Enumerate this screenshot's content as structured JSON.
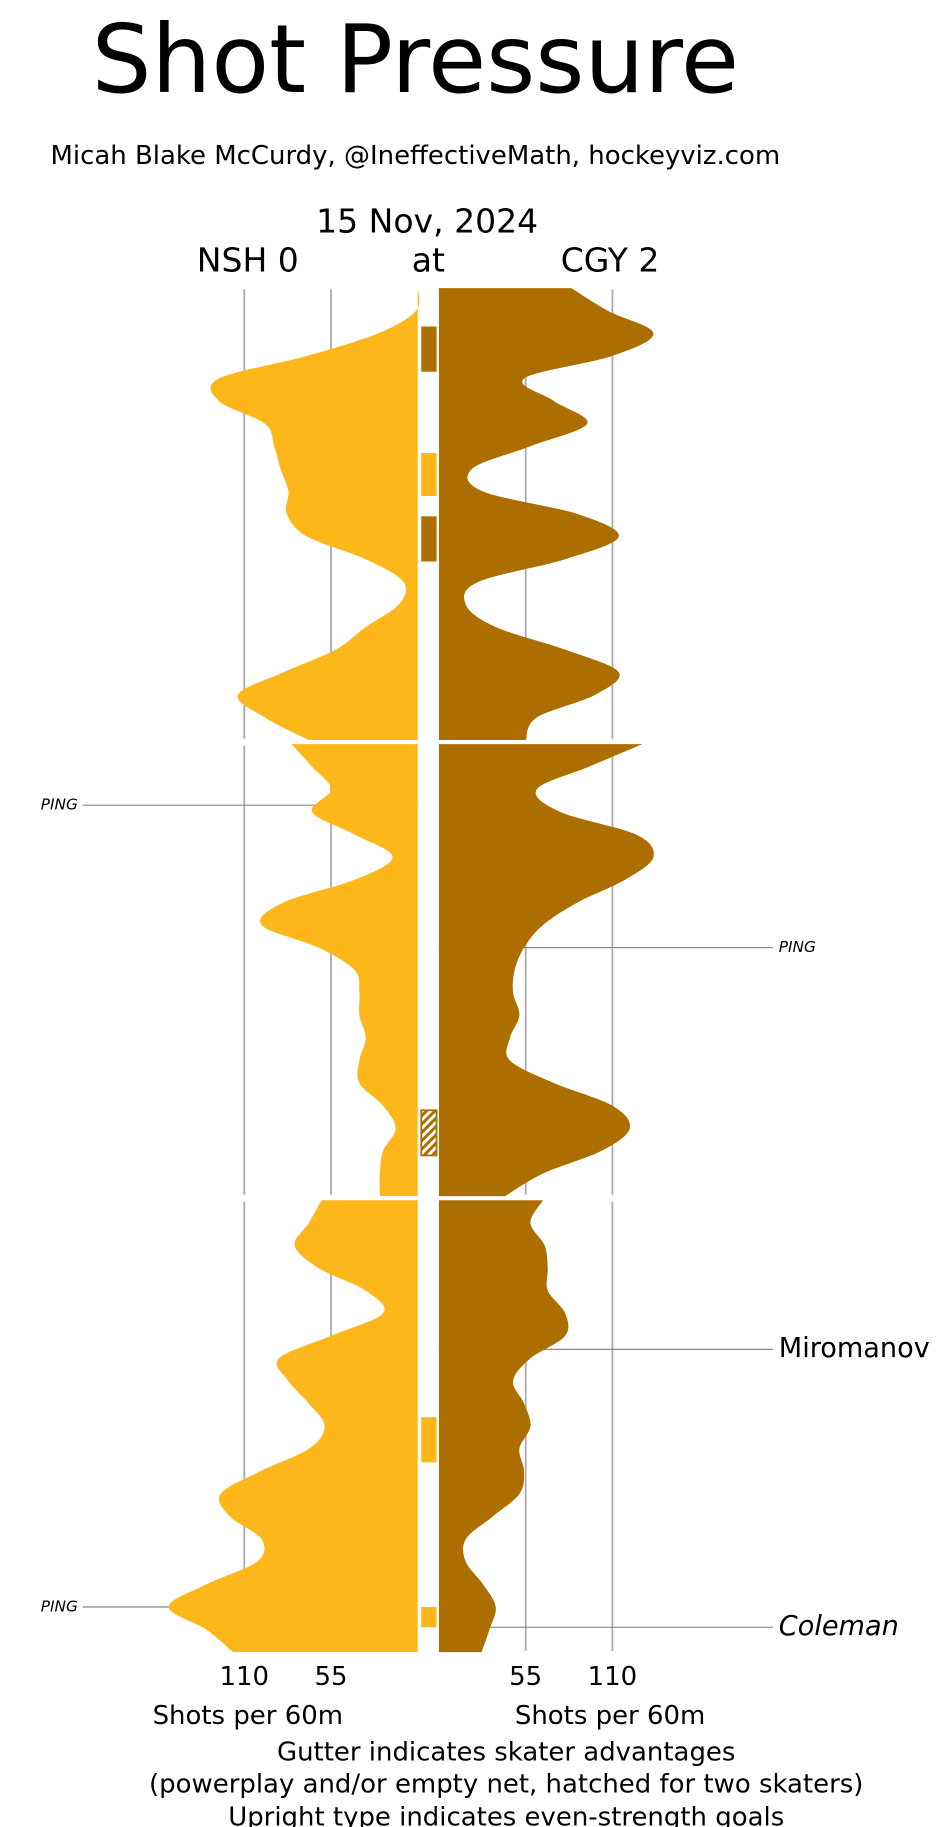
{
  "chart_data": {
    "type": "shot-pressure",
    "title": "Shot Pressure",
    "subtitle": "Micah Blake McCurdy, @IneffectiveMath, hockeyviz.com",
    "date": "15 Nov, 2024",
    "connector": "at",
    "x_label": "Shots per 60m",
    "notes": [
      "Gutter indicates skater advantages",
      "(powerplay and/or empty net, hatched for two skaters)",
      "Upright type indicates even-strength goals"
    ],
    "xlim": [
      0,
      220
    ],
    "xticks": [
      55,
      110
    ],
    "ylim": [
      0,
      60
    ],
    "x": [
      [
        0,
        1,
        2,
        3,
        4,
        5,
        6,
        7,
        8,
        9,
        10,
        11,
        12,
        13,
        14,
        15,
        16,
        17,
        18,
        19,
        20
      ],
      [
        20,
        21,
        22,
        23,
        24,
        25,
        26,
        27,
        28,
        29,
        30,
        31,
        32,
        33,
        34,
        35,
        36,
        37,
        38,
        39,
        40
      ],
      [
        40,
        41,
        42,
        43,
        44,
        45,
        46,
        47,
        48,
        49,
        50,
        51,
        52,
        53,
        54,
        55,
        56,
        57,
        58,
        59,
        60
      ]
    ],
    "series": [
      {
        "name": "NSH 0",
        "color": "#fdb71a",
        "side": "left",
        "values": [
          [
            0,
            1,
            25,
            70,
            126,
            126,
            97,
            91,
            87,
            82,
            83,
            70,
            33,
            9,
            12,
            33,
            52,
            85,
            114,
            97,
            69
          ],
          [
            80,
            67,
            55,
            67,
            40,
            16,
            40,
            85,
            99,
            63,
            40,
            37,
            37,
            33,
            37,
            37,
            22,
            14,
            22,
            24,
            24
          ],
          [
            61,
            69,
            78,
            63,
            33,
            22,
            55,
            88,
            82,
            69,
            59,
            69,
            100,
            125,
            119,
            99,
            102,
            134,
            158,
            134,
            117
          ]
        ]
      },
      {
        "name": "CGY 2",
        "color": "#ad6e00",
        "side": "right",
        "values": [
          [
            84,
            107,
            136,
            110,
            54,
            73,
            94,
            58,
            21,
            28,
            88,
            114,
            80,
            25,
            17,
            36,
            80,
            114,
            99,
            62,
            55
          ],
          [
            129,
            95,
            62,
            77,
            125,
            136,
            118,
            88,
            66,
            54,
            48,
            47,
            51,
            45,
            45,
            73,
            110,
            121,
            103,
            66,
            42
          ],
          [
            66,
            58,
            67,
            69,
            69,
            80,
            80,
            58,
            47,
            54,
            58,
            51,
            54,
            51,
            34,
            17,
            17,
            28,
            36,
            32,
            27
          ]
        ]
      }
    ],
    "advantages": [
      {
        "series": 1,
        "start": 1.7,
        "end": 3.7,
        "hatched": false
      },
      {
        "series": 0,
        "start": 7.3,
        "end": 9.2,
        "hatched": false
      },
      {
        "series": 1,
        "start": 10.1,
        "end": 12.1,
        "hatched": false
      },
      {
        "series": 1,
        "start": 36.2,
        "end": 38.2,
        "hatched": true
      },
      {
        "series": 0,
        "start": 49.6,
        "end": 51.6,
        "hatched": false
      },
      {
        "series": 0,
        "start": 58.0,
        "end": 58.9,
        "hatched": false
      }
    ],
    "annotations": [
      {
        "text": "PING",
        "minute": 22.7,
        "series": 0,
        "goal": false,
        "italic": true
      },
      {
        "text": "PING",
        "minute": 29.0,
        "series": 1,
        "goal": false,
        "italic": true
      },
      {
        "text": "Miromanov",
        "minute": 46.6,
        "series": 1,
        "goal": true,
        "italic": false
      },
      {
        "text": "PING",
        "minute": 58.0,
        "series": 0,
        "goal": false,
        "italic": true
      },
      {
        "text": "Coleman",
        "minute": 58.9,
        "series": 1,
        "goal": true,
        "italic": true
      }
    ]
  }
}
